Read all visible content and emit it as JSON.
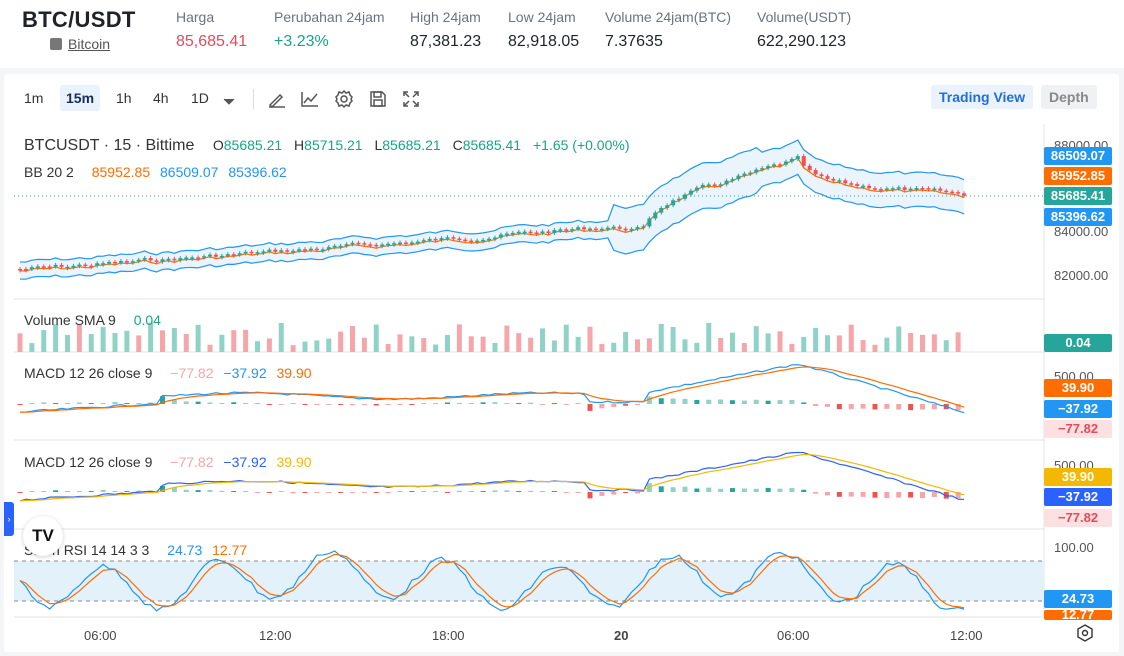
{
  "header": {
    "pair": "BTC/USDT",
    "coin_name": "Bitcoin",
    "stats": [
      {
        "label": "Harga",
        "value": "85,685.41",
        "tone": "red"
      },
      {
        "label": "Perubahan 24jam",
        "value": "+3.23%",
        "tone": "green"
      },
      {
        "label": "High 24jam",
        "value": "87,381.23",
        "tone": "normal"
      },
      {
        "label": "Low 24jam",
        "value": "82,918.05",
        "tone": "normal"
      },
      {
        "label": "Volume 24jam(BTC)",
        "value": "7.37635",
        "tone": "normal"
      },
      {
        "label": "Volume(USDT)",
        "value": "622,290.123",
        "tone": "normal"
      }
    ]
  },
  "toolbar": {
    "timeframes": [
      "1m",
      "15m",
      "1h",
      "4h",
      "1D"
    ],
    "active_timeframe": "15m",
    "tools": [
      "draw-icon",
      "indicator-icon",
      "settings-icon",
      "save-icon",
      "fullscreen-icon"
    ],
    "trading_view_label": "Trading View",
    "depth_label": "Depth"
  },
  "legend": {
    "symbol": "BTCUSDT · 15 · Bittime",
    "o_label": "O",
    "o": "85685.21",
    "h_label": "H",
    "h": "85715.21",
    "l_label": "L",
    "l": "85685.21",
    "c_label": "C",
    "c": "85685.41",
    "change": "+1.65 (+0.00%)",
    "bb_label": "BB 20 2",
    "bb_basis": "85952.85",
    "bb_upper": "86509.07",
    "bb_lower": "85396.62",
    "volume_label": "Volume SMA 9",
    "volume_value": "0.04",
    "macd1_label": "MACD 12 26 close 9",
    "macd_hist": "−77.82",
    "macd_line": "−37.92",
    "macd_signal": "39.90",
    "macd2_label": "MACD 12 26 close 9",
    "stoch_label": "Stoch RSI 14 14 3 3",
    "stoch_k": "24.73",
    "stoch_d": "12.77"
  },
  "price_axis": {
    "labels": [
      "88000.00",
      "84000.00",
      "82000.00"
    ],
    "tags": {
      "bb_upper": "86509.07",
      "bb_basis": "85952.85",
      "last_price": "85685.41",
      "bb_lower": "85396.62",
      "volume": "0.04",
      "macd1_signal": "39.90",
      "macd1_line": "−37.92",
      "macd1_hist": "−77.82",
      "macd2_signal": "39.90",
      "macd2_line": "−37.92",
      "macd2_hist": "−77.82",
      "stoch_k": "24.73",
      "stoch_d": "12.77"
    },
    "macd1_axis": "500.00",
    "macd2_axis": "500.00",
    "stoch_axis": "100.00"
  },
  "time_axis": [
    "06:00",
    "12:00",
    "18:00",
    "20",
    "06:00",
    "12:00"
  ],
  "colors": {
    "up": "#26a69a",
    "down": "#ef5350",
    "bb_upper": "#2196f3",
    "bb_basis": "#ff6d00",
    "bb_lower": "#2196f3",
    "macd1_line": "#2196f3",
    "macd1_signal": "#ff6d00",
    "macd2_line": "#2962ff",
    "macd2_signal": "#f5b800",
    "stoch_k": "#2196f3",
    "stoch_d": "#ff6d00"
  }
}
